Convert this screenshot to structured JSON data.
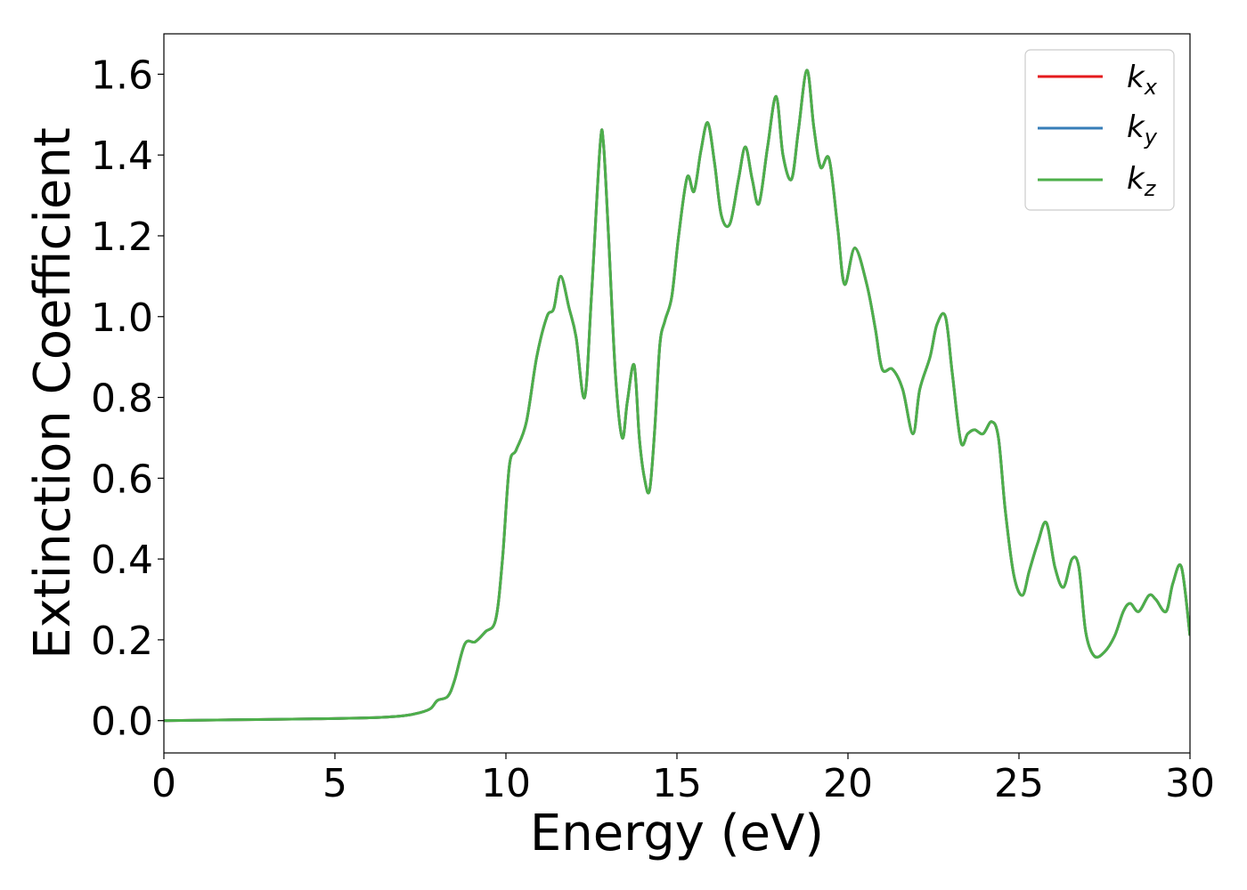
{
  "chart_data": {
    "type": "line",
    "xlabel": "Energy (eV)",
    "ylabel": "Extinction Coefficient",
    "xlim": [
      0,
      30
    ],
    "ylim": [
      -0.08,
      1.7
    ],
    "xticks": [
      0,
      5,
      10,
      15,
      20,
      25,
      30
    ],
    "xtick_labels": [
      "0",
      "5",
      "10",
      "15",
      "20",
      "25",
      "30"
    ],
    "yticks": [
      0.0,
      0.2,
      0.4,
      0.6,
      0.8,
      1.0,
      1.2,
      1.4,
      1.6
    ],
    "ytick_labels": [
      "0.0",
      "0.2",
      "0.4",
      "0.6",
      "0.8",
      "1.0",
      "1.2",
      "1.4",
      "1.6"
    ],
    "grid": false,
    "legend_position": "top-right",
    "colors": {
      "kx": "#e41a1c",
      "ky": "#377eb8",
      "kz": "#4daf4a"
    },
    "legend": [
      {
        "base": "k",
        "sub": "x",
        "color": "#e41a1c"
      },
      {
        "base": "k",
        "sub": "y",
        "color": "#377eb8"
      },
      {
        "base": "k",
        "sub": "z",
        "color": "#4daf4a"
      }
    ],
    "x": [
      0,
      2,
      4,
      6,
      7,
      7.5,
      7.8,
      8.0,
      8.3,
      8.5,
      8.8,
      9.1,
      9.4,
      9.7,
      9.9,
      10.1,
      10.3,
      10.6,
      10.9,
      11.2,
      11.4,
      11.6,
      11.85,
      12.05,
      12.3,
      12.5,
      12.75,
      12.85,
      13.0,
      13.2,
      13.4,
      13.55,
      13.75,
      13.9,
      14.05,
      14.2,
      14.35,
      14.5,
      14.65,
      14.85,
      15.05,
      15.3,
      15.5,
      15.7,
      15.9,
      16.1,
      16.3,
      16.55,
      16.8,
      17.0,
      17.2,
      17.4,
      17.65,
      17.9,
      18.1,
      18.35,
      18.55,
      18.8,
      19.0,
      19.2,
      19.45,
      19.7,
      19.9,
      20.2,
      20.55,
      20.8,
      21.0,
      21.3,
      21.6,
      21.9,
      22.1,
      22.4,
      22.6,
      22.85,
      23.05,
      23.3,
      23.5,
      23.7,
      23.95,
      24.2,
      24.4,
      24.6,
      24.85,
      25.1,
      25.3,
      25.55,
      25.8,
      26.05,
      26.3,
      26.55,
      26.75,
      26.95,
      27.2,
      27.5,
      27.8,
      28.05,
      28.25,
      28.5,
      28.8,
      29.0,
      29.3,
      29.5,
      29.75,
      30.0
    ],
    "series": [
      {
        "name": "kx",
        "values": [
          0.0,
          0.002,
          0.004,
          0.007,
          0.012,
          0.02,
          0.03,
          0.05,
          0.06,
          0.1,
          0.19,
          0.195,
          0.22,
          0.25,
          0.4,
          0.63,
          0.67,
          0.74,
          0.9,
          1.0,
          1.02,
          1.1,
          1.02,
          0.95,
          0.8,
          1.05,
          1.42,
          1.43,
          1.2,
          0.86,
          0.7,
          0.79,
          0.88,
          0.7,
          0.6,
          0.57,
          0.72,
          0.93,
          0.99,
          1.05,
          1.2,
          1.345,
          1.31,
          1.41,
          1.48,
          1.38,
          1.25,
          1.23,
          1.34,
          1.42,
          1.34,
          1.28,
          1.42,
          1.545,
          1.4,
          1.34,
          1.46,
          1.61,
          1.47,
          1.37,
          1.39,
          1.22,
          1.08,
          1.17,
          1.08,
          0.97,
          0.87,
          0.87,
          0.82,
          0.71,
          0.82,
          0.9,
          0.98,
          1.0,
          0.86,
          0.69,
          0.71,
          0.72,
          0.71,
          0.74,
          0.7,
          0.52,
          0.36,
          0.31,
          0.37,
          0.44,
          0.49,
          0.38,
          0.33,
          0.4,
          0.38,
          0.22,
          0.16,
          0.17,
          0.21,
          0.27,
          0.29,
          0.27,
          0.31,
          0.3,
          0.27,
          0.34,
          0.38,
          0.21
        ]
      },
      {
        "name": "ky",
        "values": [
          0.0,
          0.002,
          0.004,
          0.007,
          0.012,
          0.02,
          0.03,
          0.05,
          0.06,
          0.1,
          0.19,
          0.195,
          0.22,
          0.25,
          0.4,
          0.63,
          0.67,
          0.74,
          0.9,
          1.0,
          1.02,
          1.1,
          1.02,
          0.95,
          0.8,
          1.05,
          1.42,
          1.43,
          1.2,
          0.86,
          0.7,
          0.79,
          0.88,
          0.7,
          0.6,
          0.57,
          0.72,
          0.93,
          0.99,
          1.05,
          1.2,
          1.345,
          1.31,
          1.41,
          1.48,
          1.38,
          1.25,
          1.23,
          1.34,
          1.42,
          1.34,
          1.28,
          1.42,
          1.545,
          1.4,
          1.34,
          1.46,
          1.61,
          1.47,
          1.37,
          1.39,
          1.22,
          1.08,
          1.17,
          1.08,
          0.97,
          0.87,
          0.87,
          0.82,
          0.71,
          0.82,
          0.9,
          0.98,
          1.0,
          0.86,
          0.69,
          0.71,
          0.72,
          0.71,
          0.74,
          0.7,
          0.52,
          0.36,
          0.31,
          0.37,
          0.44,
          0.49,
          0.38,
          0.33,
          0.4,
          0.38,
          0.22,
          0.16,
          0.17,
          0.21,
          0.27,
          0.29,
          0.27,
          0.31,
          0.3,
          0.27,
          0.34,
          0.38,
          0.21
        ]
      },
      {
        "name": "kz",
        "values": [
          0.0,
          0.002,
          0.004,
          0.007,
          0.012,
          0.02,
          0.03,
          0.05,
          0.06,
          0.1,
          0.19,
          0.195,
          0.22,
          0.25,
          0.4,
          0.63,
          0.67,
          0.74,
          0.9,
          1.0,
          1.02,
          1.1,
          1.02,
          0.95,
          0.8,
          1.05,
          1.42,
          1.43,
          1.2,
          0.86,
          0.7,
          0.79,
          0.88,
          0.7,
          0.6,
          0.57,
          0.72,
          0.93,
          0.99,
          1.05,
          1.2,
          1.345,
          1.31,
          1.41,
          1.48,
          1.38,
          1.25,
          1.23,
          1.34,
          1.42,
          1.34,
          1.28,
          1.42,
          1.545,
          1.4,
          1.34,
          1.46,
          1.61,
          1.47,
          1.37,
          1.39,
          1.22,
          1.08,
          1.17,
          1.08,
          0.97,
          0.87,
          0.87,
          0.82,
          0.71,
          0.82,
          0.9,
          0.98,
          1.0,
          0.86,
          0.69,
          0.71,
          0.72,
          0.71,
          0.74,
          0.7,
          0.52,
          0.36,
          0.31,
          0.37,
          0.44,
          0.49,
          0.38,
          0.33,
          0.4,
          0.38,
          0.22,
          0.16,
          0.17,
          0.21,
          0.27,
          0.29,
          0.27,
          0.31,
          0.3,
          0.27,
          0.34,
          0.38,
          0.21
        ]
      }
    ]
  }
}
